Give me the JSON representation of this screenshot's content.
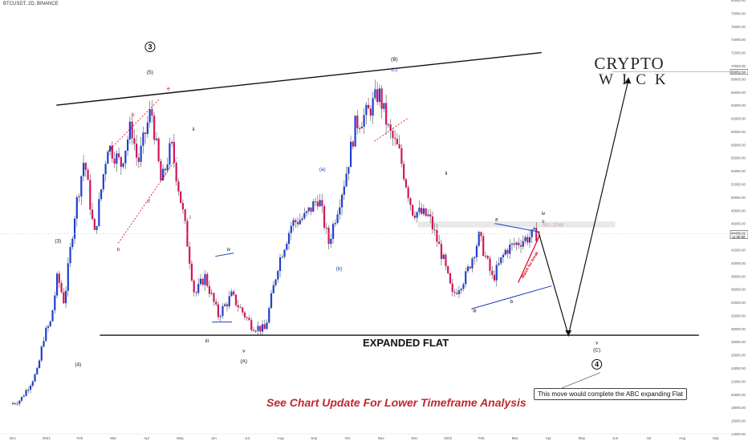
{
  "header": {
    "symbol_text": "BTCUSDT, 2D, BINANCE"
  },
  "logo": {
    "line1": "CRYPTO",
    "line2": "WICK"
  },
  "main_labels": {
    "expanded_flat": "EXPANDED FLAT",
    "footer": "See Chart Update For Lower Timeframe Analysis",
    "callout": "This move would complete the ABC expanding Flat",
    "sell_zone": "SELL ZONE",
    "watch": "Watch for break"
  },
  "price_tags": {
    "upper": "69052.84",
    "current": "44436.02",
    "current_time": "11:00:59"
  },
  "colors": {
    "up": "#1e3fd0",
    "down": "#d4145a",
    "wave_red": "#d0021b",
    "wave_blue": "#1a3fbf",
    "zone": "#e8e8e8",
    "footer_red": "#c0272d"
  },
  "chart_data": {
    "type": "candlestick",
    "y_axis": {
      "min": 14000,
      "max": 80000,
      "step": 2000,
      "position": "right",
      "tick_labels": [
        "80000.00",
        "78000.00",
        "76000.00",
        "74000.00",
        "72000.00",
        "70000.00",
        "68000.00",
        "66000.00",
        "64000.00",
        "62000.00",
        "60000.00",
        "58000.00",
        "56000.00",
        "54000.00",
        "52000.00",
        "50000.00",
        "48000.00",
        "46000.00",
        "44000.00",
        "42000.00",
        "40000.00",
        "38000.00",
        "36000.00",
        "34000.00",
        "32000.00",
        "30000.00",
        "28000.00",
        "26000.00",
        "24000.00",
        "22000.00",
        "20000.00",
        "18000.00",
        "16000.00",
        "14000.00"
      ]
    },
    "x_axis": {
      "tick_labels": [
        "Dec",
        "2021",
        "Feb",
        "Mar",
        "Apr",
        "May",
        "Jun",
        "Jul",
        "Aug",
        "Sep",
        "Oct",
        "Nov",
        "Dec",
        "2022",
        "Feb",
        "Mar",
        "Apr",
        "May",
        "Jun",
        "Jul",
        "Aug",
        "Sep"
      ],
      "tick_month_index": [
        0,
        1,
        2,
        3,
        4,
        5,
        6,
        7,
        8,
        9,
        10,
        11,
        12,
        13,
        14,
        15,
        16,
        17,
        18,
        19,
        20,
        21
      ]
    },
    "price_path": [
      [
        0,
        18500
      ],
      [
        0.3,
        19200
      ],
      [
        0.8,
        23500
      ],
      [
        1,
        29000
      ],
      [
        1.2,
        31000
      ],
      [
        1.4,
        38000
      ],
      [
        1.6,
        34000
      ],
      [
        1.9,
        47000
      ],
      [
        2.2,
        56000
      ],
      [
        2.5,
        44000
      ],
      [
        2.9,
        58000
      ],
      [
        3.3,
        55000
      ],
      [
        3.6,
        61000
      ],
      [
        3.8,
        55000
      ],
      [
        4.2,
        63500
      ],
      [
        4.5,
        52000
      ],
      [
        4.8,
        58000
      ],
      [
        5.2,
        46000
      ],
      [
        5.5,
        35000
      ],
      [
        5.8,
        38000
      ],
      [
        6.2,
        32000
      ],
      [
        6.6,
        35000
      ],
      [
        7.2,
        30500
      ],
      [
        7.6,
        29800
      ],
      [
        8.0,
        40000
      ],
      [
        8.4,
        46000
      ],
      [
        8.8,
        47000
      ],
      [
        9.2,
        50000
      ],
      [
        9.5,
        43000
      ],
      [
        10,
        53000
      ],
      [
        10.3,
        61000
      ],
      [
        10.7,
        63000
      ],
      [
        11,
        66000
      ],
      [
        11.3,
        60000
      ],
      [
        11.6,
        57000
      ],
      [
        12,
        48000
      ],
      [
        12.5,
        47000
      ],
      [
        12.9,
        41000
      ],
      [
        13.2,
        35000
      ],
      [
        13.6,
        38000
      ],
      [
        14,
        44000
      ],
      [
        14.4,
        37500
      ],
      [
        14.8,
        42000
      ],
      [
        15.3,
        43500
      ],
      [
        15.7,
        44400
      ]
    ],
    "projection": {
      "points": [
        [
          15.7,
          44800
        ],
        [
          16.6,
          29000
        ],
        [
          18.4,
          68000
        ]
      ],
      "color": "#111111"
    },
    "trendlines": [
      {
        "from": [
          1.3,
          64000
        ],
        "to": [
          15.8,
          72000
        ],
        "color": "#111111"
      },
      {
        "from": [
          2.6,
          29000
        ],
        "to": [
          20.5,
          29000
        ],
        "color": "#111111"
      }
    ],
    "sell_zone": {
      "x_from": 12.1,
      "x_to": 18.0,
      "y_low": 45400,
      "y_high": 46300
    },
    "upper_level": 69052.84,
    "wave_labels": [
      {
        "text": "3",
        "x": 4.1,
        "y": 72500,
        "circle": true
      },
      {
        "text": "(5)",
        "x": 4.1,
        "y": 68800
      },
      {
        "text": "(3)",
        "x": 1.35,
        "y": 43100
      },
      {
        "text": "(4)",
        "x": 1.95,
        "y": 24300
      },
      {
        "text": "ii",
        "x": 5.4,
        "y": 60100
      },
      {
        "text": "i",
        "x": 5.3,
        "y": 46700
      },
      {
        "text": "iii",
        "x": 5.8,
        "y": 27900
      },
      {
        "text": "iv",
        "x": 6.45,
        "y": 41800
      },
      {
        "text": "v",
        "x": 6.9,
        "y": 26400
      },
      {
        "text": "(A)",
        "x": 6.9,
        "y": 24800
      },
      {
        "text": "(a)",
        "x": 9.25,
        "y": 54000,
        "color": "#1a3fbf"
      },
      {
        "text": "(b)",
        "x": 9.75,
        "y": 38900,
        "color": "#1a3fbf"
      },
      {
        "text": "(B)",
        "x": 11.4,
        "y": 70700
      },
      {
        "text": "(c)",
        "x": 11.4,
        "y": 69200,
        "color": "#1a3fbf"
      },
      {
        "text": "ii",
        "x": 12.95,
        "y": 53400
      },
      {
        "text": "iii",
        "x": 13.8,
        "y": 32500
      },
      {
        "text": "a",
        "x": 14.45,
        "y": 46400
      },
      {
        "text": "b",
        "x": 14.9,
        "y": 33900
      },
      {
        "text": "iv",
        "x": 15.85,
        "y": 47300
      },
      {
        "text": "c",
        "x": 15.85,
        "y": 46100
      },
      {
        "text": "v",
        "x": 17.45,
        "y": 27600
      },
      {
        "text": "(C)",
        "x": 17.45,
        "y": 26500
      },
      {
        "text": "4",
        "x": 17.45,
        "y": 24200,
        "circle": true
      },
      {
        "text": "a",
        "x": 2.95,
        "y": 57200,
        "color": "#d0021b"
      },
      {
        "text": "b",
        "x": 3.15,
        "y": 41800,
        "color": "#d0021b"
      },
      {
        "text": "c",
        "x": 3.6,
        "y": 62300,
        "color": "#d0021b"
      },
      {
        "text": "d",
        "x": 4.05,
        "y": 49200,
        "color": "#d0021b"
      },
      {
        "text": "e",
        "x": 4.65,
        "y": 66300,
        "color": "#d0021b"
      }
    ]
  }
}
